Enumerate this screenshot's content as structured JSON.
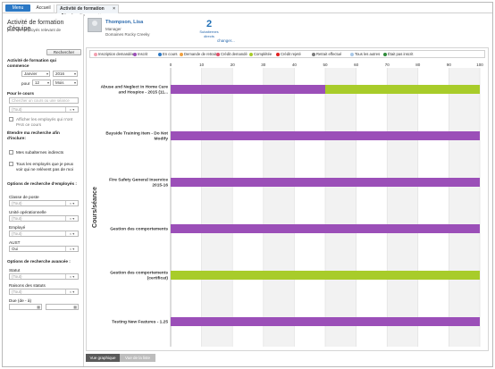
{
  "nav": {
    "menu": "Menu",
    "home": "Accueil",
    "active_tab": "Activité de formation d'équipe",
    "active_tab_sub": "Thompson, Lisa",
    "close": "×"
  },
  "page": {
    "title": "Activité de formation d'équipe",
    "subtitle": "pour les employés relevant de"
  },
  "user": {
    "name": "Thompson, Lisa",
    "role": "Manager",
    "location": "Domaines Rocky Creeky",
    "subordinates_count": "2",
    "subordinates_label": "Subalternes directs",
    "change_link": "changer..."
  },
  "filters": {
    "search_button": "Rechercher",
    "since_label": "Activité de formation qui commence",
    "month": "Janvier",
    "year": "2016",
    "for_label": "pour",
    "period_value": "12",
    "period_unit": "Mois",
    "course_label": "Pour le cours",
    "course_placeholder": "Chercher un cours ou une séance",
    "course_select": "(Tout)",
    "show_not_enrolled": "Afficher les employés qui n'ont PAS ce cours",
    "extend_label": "Étendre ma recherche afin d'inclure:",
    "indirect_reports": "Mes subalternes indirects",
    "all_visible": "Tous les employés que je peux voir qui ne relèvent pas de moi",
    "employee_options_label": "Options de recherche d'employés :",
    "position_class_label": "Classe de poste",
    "position_class_value": "(Tout)",
    "op_unit_label": "Unité opérationnelle",
    "op_unit_value": "(Tout)",
    "employee_label": "Employé",
    "employee_value": "(Tout)",
    "aust_label": "AUST",
    "aust_value": "Oui",
    "advanced_label": "Options de recherche avancée :",
    "status_label": "Statut",
    "status_value": "(Tout)",
    "status_reasons_label": "Raisons des statuts",
    "status_reasons_value": "(Tout)",
    "due_label": "Due (de - à)"
  },
  "legend": [
    {
      "label": "Inscription demandée",
      "color": "#f4a0b0"
    },
    {
      "label": "Inscrit",
      "color": "#9b4fb8"
    },
    {
      "label": "En cours",
      "color": "#2b78c5"
    },
    {
      "label": "Demande de retrait",
      "color": "#f0a040"
    },
    {
      "label": "Crédit demandé",
      "color": "#e0506a"
    },
    {
      "label": "Complétée",
      "color": "#a8cc2a"
    },
    {
      "label": "Crédit rejeté",
      "color": "#e02020"
    },
    {
      "label": "Retrait effectué",
      "color": "#7a7a7a"
    },
    {
      "label": "Tous les autres",
      "color": "#a8c8e8"
    },
    {
      "label": "Était pas inscrit",
      "color": "#2e8b3a"
    }
  ],
  "chart_data": {
    "type": "bar",
    "orientation": "horizontal",
    "stacked": true,
    "ylabel": "Cours/séance",
    "xlim": [
      0,
      100
    ],
    "xticks": [
      0,
      10,
      20,
      30,
      40,
      50,
      60,
      70,
      80,
      90,
      100
    ],
    "categories": [
      "Abuse and Neglect in Home Care and Hospice - 2015 (11...",
      "Bayside Training Item - Do Not Modify",
      "Fire Safety General Inservice 2015-16",
      "Gestion des comportements",
      "Gestion des comportements (certificat)",
      "Testing New Features - 1.25"
    ],
    "series": [
      {
        "name": "Inscrit",
        "color": "#9b4fb8",
        "values": [
          50,
          100,
          100,
          100,
          0,
          100
        ]
      },
      {
        "name": "Complétée",
        "color": "#a8cc2a",
        "values": [
          50,
          0,
          0,
          0,
          100,
          0
        ]
      }
    ],
    "grid": true
  },
  "view_tabs": {
    "graph": "Vue graphique",
    "list": "Vue de la liste"
  }
}
